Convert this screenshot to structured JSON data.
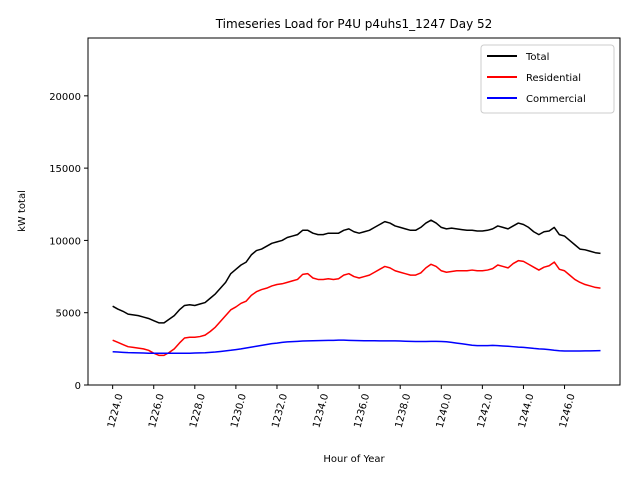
{
  "chart_data": {
    "type": "line",
    "title": "Timeseries Load for P4U p4uhs1_1247  Day 52",
    "xlabel": "Hour of Year",
    "ylabel": "kW total",
    "xlim": [
      1222.8,
      1248.7
    ],
    "ylim": [
      0,
      24000
    ],
    "xticks": [
      1224,
      1226,
      1228,
      1230,
      1232,
      1234,
      1236,
      1238,
      1240,
      1242,
      1244,
      1246
    ],
    "xtick_labels": [
      "1224.0",
      "1226.0",
      "1228.0",
      "1230.0",
      "1232.0",
      "1234.0",
      "1236.0",
      "1238.0",
      "1240.0",
      "1242.0",
      "1244.0",
      "1246.0"
    ],
    "yticks": [
      0,
      5000,
      10000,
      15000,
      20000
    ],
    "ytick_labels": [
      "0",
      "5000",
      "10000",
      "15000",
      "20000"
    ],
    "legend_position": "top-right",
    "x": [
      1224.0,
      1224.25,
      1224.5,
      1224.75,
      1225.0,
      1225.25,
      1225.5,
      1225.75,
      1226.0,
      1226.25,
      1226.5,
      1226.75,
      1227.0,
      1227.25,
      1227.5,
      1227.75,
      1228.0,
      1228.25,
      1228.5,
      1228.75,
      1229.0,
      1229.25,
      1229.5,
      1229.75,
      1230.0,
      1230.25,
      1230.5,
      1230.75,
      1231.0,
      1231.25,
      1231.5,
      1231.75,
      1232.0,
      1232.25,
      1232.5,
      1232.75,
      1233.0,
      1233.25,
      1233.5,
      1233.75,
      1234.0,
      1234.25,
      1234.5,
      1234.75,
      1235.0,
      1235.25,
      1235.5,
      1235.75,
      1236.0,
      1236.25,
      1236.5,
      1236.75,
      1237.0,
      1237.25,
      1237.5,
      1237.75,
      1238.0,
      1238.25,
      1238.5,
      1238.75,
      1239.0,
      1239.25,
      1239.5,
      1239.75,
      1240.0,
      1240.25,
      1240.5,
      1240.75,
      1241.0,
      1241.25,
      1241.5,
      1241.75,
      1242.0,
      1242.25,
      1242.5,
      1242.75,
      1243.0,
      1243.25,
      1243.5,
      1243.75,
      1244.0,
      1244.25,
      1244.5,
      1244.75,
      1245.0,
      1245.25,
      1245.5,
      1245.75,
      1246.0,
      1246.25,
      1246.5,
      1246.75,
      1247.0,
      1247.25,
      1247.5,
      1247.75
    ],
    "series": [
      {
        "name": "Total",
        "color": "#000000",
        "values": [
          5450,
          5250,
          5100,
          4900,
          4850,
          4800,
          4700,
          4600,
          4450,
          4300,
          4300,
          4550,
          4800,
          5200,
          5500,
          5550,
          5500,
          5600,
          5700,
          6000,
          6300,
          6700,
          7100,
          7700,
          8000,
          8300,
          8500,
          9000,
          9300,
          9400,
          9600,
          9800,
          9900,
          10000,
          10200,
          10300,
          10400,
          10700,
          10700,
          10500,
          10400,
          10400,
          10500,
          10500,
          10500,
          10700,
          10800,
          10600,
          10500,
          10600,
          10700,
          10900,
          11100,
          11300,
          11200,
          11000,
          10900,
          10800,
          10700,
          10700,
          10900,
          11200,
          11400,
          11200,
          10900,
          10800,
          10850,
          10800,
          10750,
          10700,
          10700,
          10650,
          10650,
          10700,
          10800,
          11000,
          10900,
          10800,
          11000,
          11200,
          11100,
          10900,
          10600,
          10400,
          10600,
          10650,
          10900,
          10400,
          10300,
          10000,
          9700,
          9400,
          9350,
          9250,
          9150,
          9100
        ]
      },
      {
        "name": "Residential",
        "color": "#ff0000",
        "values": [
          3100,
          2950,
          2800,
          2650,
          2600,
          2550,
          2500,
          2400,
          2200,
          2050,
          2050,
          2250,
          2500,
          2900,
          3250,
          3300,
          3300,
          3350,
          3450,
          3700,
          4000,
          4400,
          4800,
          5200,
          5400,
          5650,
          5800,
          6200,
          6450,
          6600,
          6700,
          6850,
          6950,
          7000,
          7100,
          7200,
          7300,
          7650,
          7700,
          7400,
          7300,
          7300,
          7350,
          7300,
          7350,
          7600,
          7700,
          7500,
          7400,
          7500,
          7600,
          7800,
          8000,
          8200,
          8100,
          7900,
          7800,
          7700,
          7600,
          7600,
          7750,
          8100,
          8350,
          8200,
          7900,
          7800,
          7850,
          7900,
          7900,
          7900,
          7950,
          7900,
          7900,
          7950,
          8050,
          8300,
          8200,
          8100,
          8400,
          8600,
          8550,
          8350,
          8150,
          7950,
          8150,
          8250,
          8500,
          8000,
          7900,
          7600,
          7300,
          7100,
          6950,
          6850,
          6750,
          6700
        ]
      },
      {
        "name": "Commercial",
        "color": "#0000ff",
        "values": [
          2300,
          2280,
          2260,
          2240,
          2230,
          2220,
          2210,
          2200,
          2200,
          2200,
          2200,
          2200,
          2200,
          2200,
          2200,
          2200,
          2210,
          2220,
          2230,
          2260,
          2280,
          2320,
          2360,
          2400,
          2450,
          2500,
          2560,
          2620,
          2680,
          2740,
          2800,
          2860,
          2900,
          2950,
          2980,
          3000,
          3020,
          3040,
          3050,
          3060,
          3070,
          3080,
          3090,
          3090,
          3100,
          3100,
          3090,
          3080,
          3070,
          3060,
          3060,
          3060,
          3050,
          3050,
          3050,
          3050,
          3040,
          3030,
          3020,
          3010,
          3010,
          3010,
          3020,
          3020,
          3010,
          2990,
          2950,
          2900,
          2850,
          2800,
          2750,
          2720,
          2720,
          2720,
          2740,
          2720,
          2700,
          2680,
          2650,
          2620,
          2600,
          2570,
          2530,
          2500,
          2480,
          2450,
          2400,
          2370,
          2350,
          2350,
          2350,
          2350,
          2360,
          2360,
          2370,
          2380
        ]
      }
    ]
  }
}
